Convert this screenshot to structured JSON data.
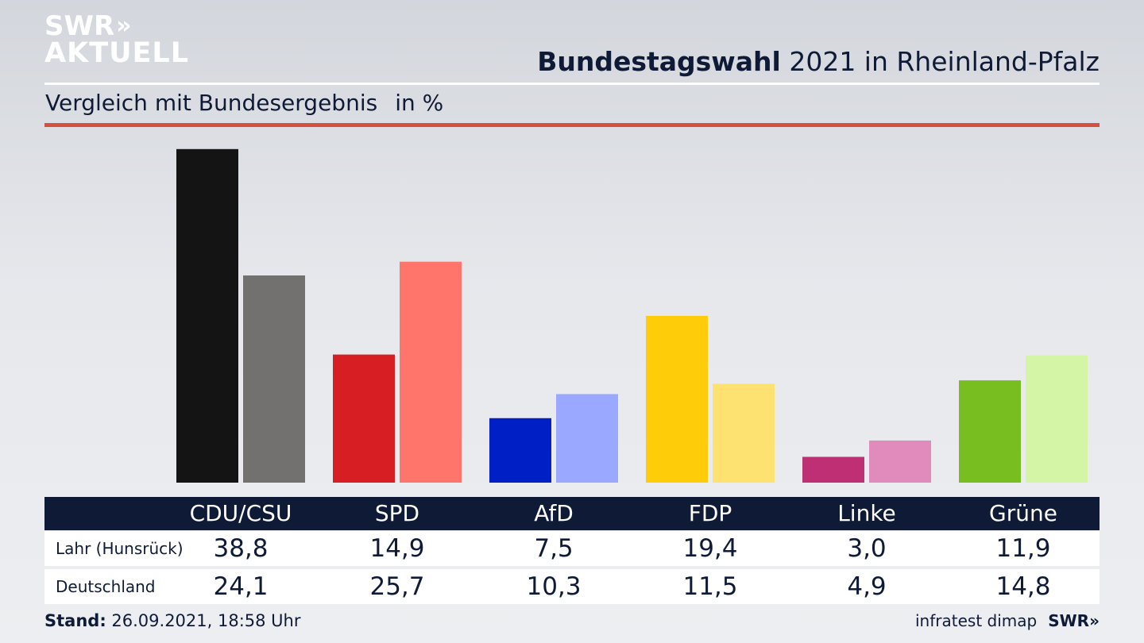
{
  "logo": {
    "line1": "SWR",
    "line2": "AKTUELL",
    "chevrons": "»"
  },
  "title": {
    "bold": "Bundestagswahl",
    "rest": " 2021 in Rheinland-Pfalz"
  },
  "subtitle": {
    "text": "Vergleich mit Bundesergebnis",
    "unit": "in %"
  },
  "colors": {
    "navy": "#0f1b36",
    "accent_red": "#d65040",
    "parties": [
      {
        "primary": "#141414",
        "secondary": "#73716f"
      },
      {
        "primary": "#d61e23",
        "secondary": "#ff756c"
      },
      {
        "primary": "#0020c6",
        "secondary": "#9aa9ff"
      },
      {
        "primary": "#ffcc0a",
        "secondary": "#fde171"
      },
      {
        "primary": "#be2f74",
        "secondary": "#e08bbc"
      },
      {
        "primary": "#78be20",
        "secondary": "#d4f5a6"
      }
    ]
  },
  "table": {
    "parties": [
      "CDU/CSU",
      "SPD",
      "AfD",
      "FDP",
      "Linke",
      "Grüne"
    ],
    "rows": [
      {
        "label": "Lahr (Hunsrück)",
        "values": [
          "38,8",
          "14,9",
          "7,5",
          "19,4",
          "3,0",
          "11,9"
        ]
      },
      {
        "label": "Deutschland",
        "values": [
          "24,1",
          "25,7",
          "10,3",
          "11,5",
          "4,9",
          "14,8"
        ]
      }
    ]
  },
  "chart_data": {
    "type": "bar",
    "categories": [
      "CDU/CSU",
      "SPD",
      "AfD",
      "FDP",
      "Linke",
      "Grüne"
    ],
    "series": [
      {
        "name": "Lahr (Hunsrück)",
        "values": [
          38.8,
          14.9,
          7.5,
          19.4,
          3.0,
          11.9
        ]
      },
      {
        "name": "Deutschland",
        "values": [
          24.1,
          25.7,
          10.3,
          11.5,
          4.9,
          14.8
        ]
      }
    ],
    "title": "Bundestagswahl 2021 in Rheinland-Pfalz",
    "subtitle": "Vergleich mit Bundesergebnis in %",
    "grid": false,
    "legend": "table below chart"
  },
  "footer": {
    "label": "Stand:",
    "value": " 26.09.2021, 18:58 Uhr"
  },
  "source": {
    "text": "infratest dimap",
    "brand": "SWR",
    "chevrons": "»"
  }
}
